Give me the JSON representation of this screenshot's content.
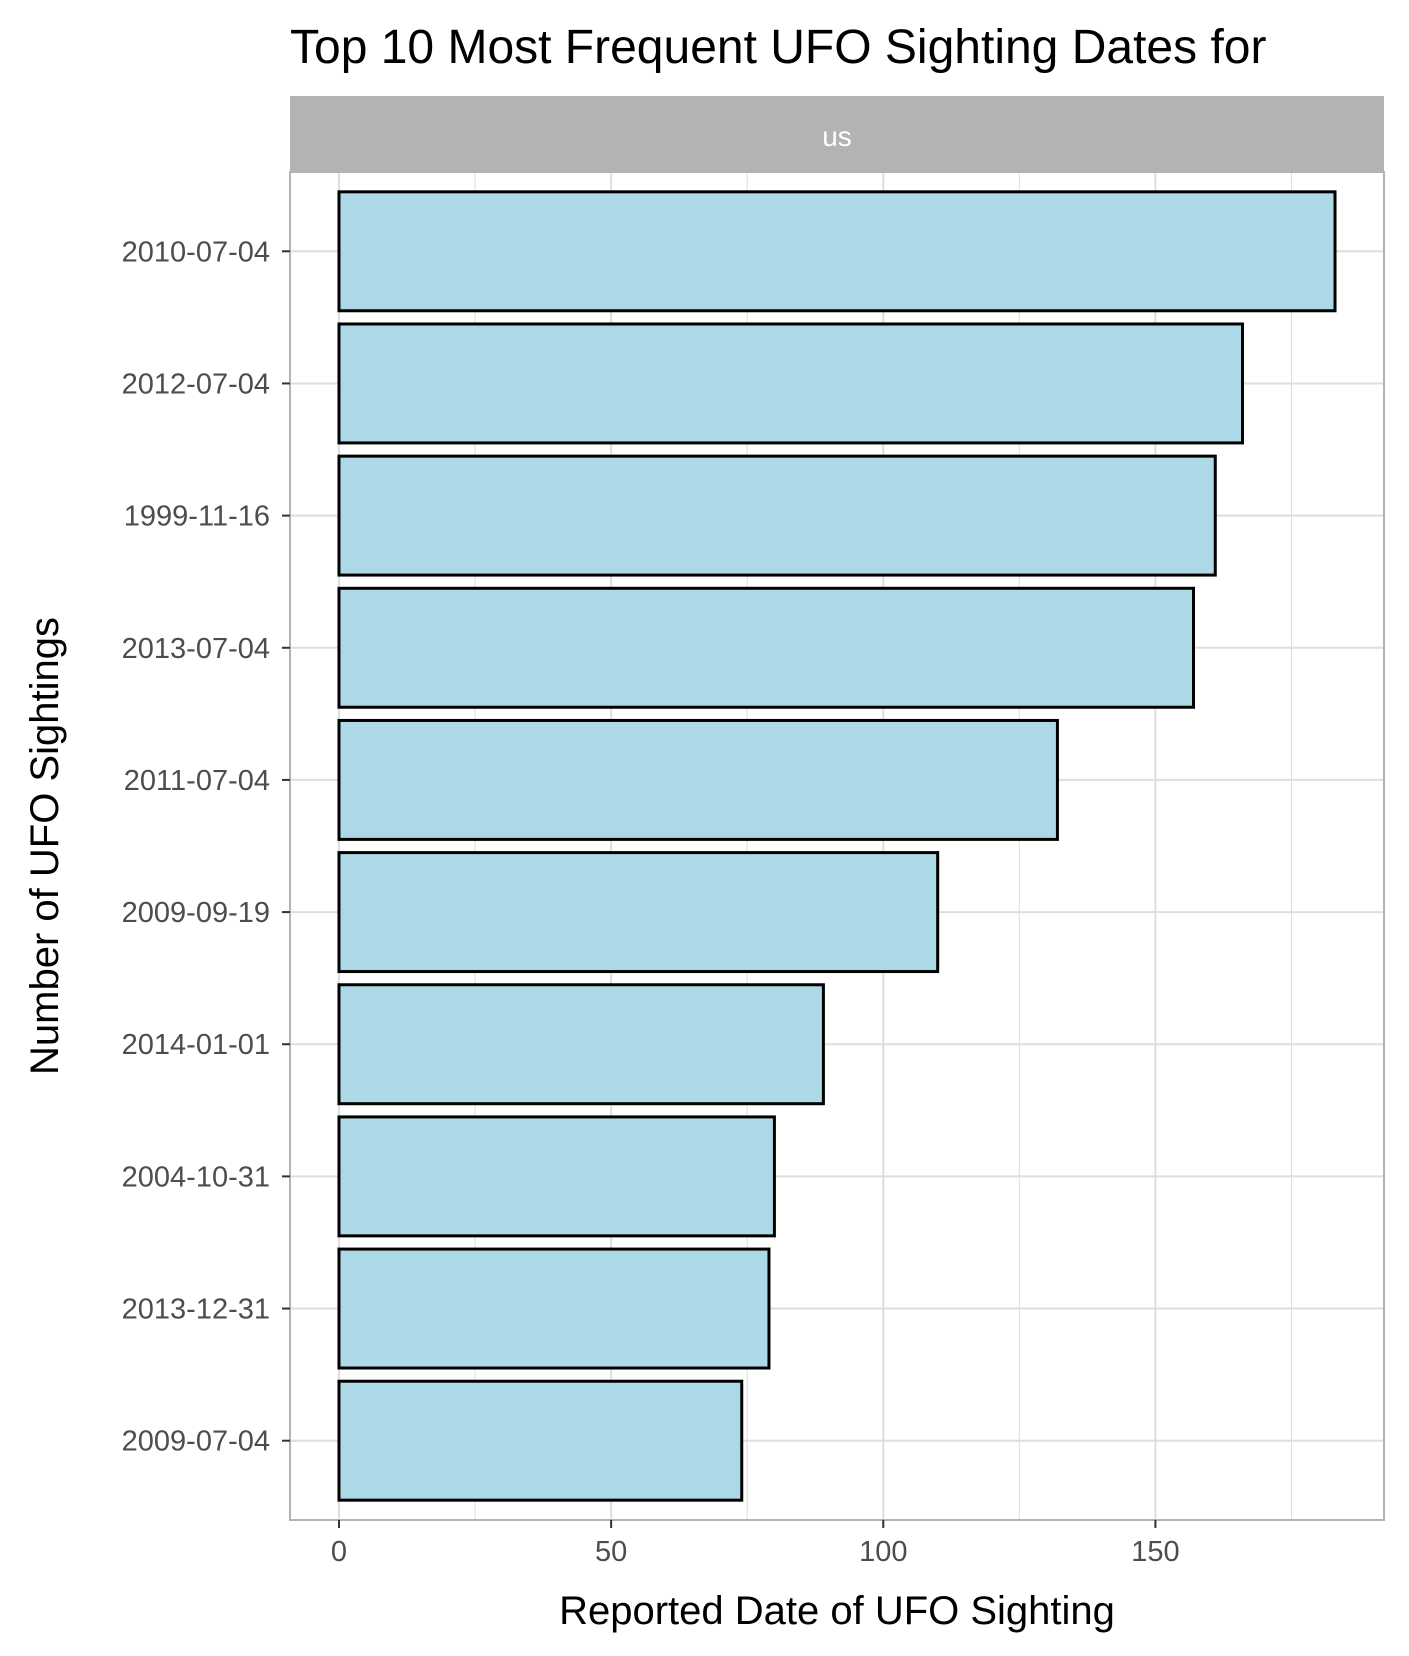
{
  "chart_data": {
    "type": "bar",
    "orientation": "horizontal",
    "title": "Top 10 Most Frequent UFO Sighting Dates for",
    "facet_label": "us",
    "xlabel": "Reported Date of UFO Sighting",
    "ylabel": "Number of UFO Sightings",
    "categories": [
      "2010-07-04",
      "2012-07-04",
      "1999-11-16",
      "2013-07-04",
      "2011-07-04",
      "2009-09-19",
      "2014-01-01",
      "2004-10-31",
      "2013-12-31",
      "2009-07-04"
    ],
    "values": [
      183,
      166,
      161,
      157,
      132,
      110,
      89,
      80,
      79,
      74
    ],
    "x_ticks": [
      0,
      50,
      100,
      150
    ],
    "xlim": [
      -9,
      192
    ],
    "grid": true,
    "colors": {
      "bar_fill": "#add8e6",
      "bar_stroke": "#000000",
      "strip_fill": "#b3b3b3",
      "grid": "#dedede",
      "panel_border": "#b3b3b3"
    }
  }
}
